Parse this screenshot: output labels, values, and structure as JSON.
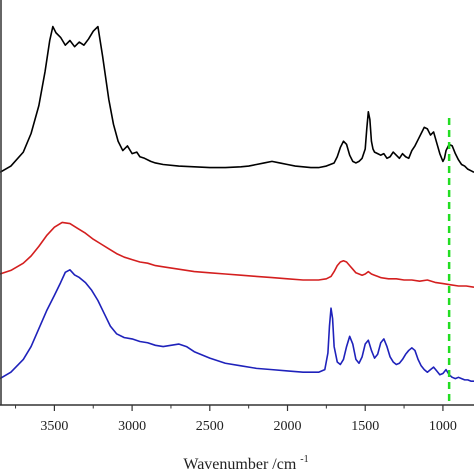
{
  "chart_data": {
    "type": "line",
    "xlabel": "Wavenumber /cm",
    "xlabel_superscript": "-1",
    "ylabel": "",
    "x_reversed": true,
    "xlim": [
      3850,
      800
    ],
    "x_ticks": [
      3500,
      3000,
      2500,
      2000,
      1500,
      1000
    ],
    "x_tick_labels": [
      "3500",
      "3000",
      "2500",
      "2000",
      "1500",
      "1000"
    ],
    "y_ticks_shown": false,
    "grid": false,
    "legend": "none",
    "reference_line": {
      "x": 960,
      "style": "dashed",
      "color": "#22dd22"
    },
    "series": [
      {
        "color": "#000000",
        "x": [
          3850,
          3780,
          3700,
          3650,
          3600,
          3560,
          3530,
          3510,
          3490,
          3460,
          3430,
          3400,
          3370,
          3340,
          3310,
          3280,
          3250,
          3220,
          3190,
          3150,
          3120,
          3090,
          3060,
          3030,
          3000,
          2970,
          2950,
          2920,
          2880,
          2850,
          2800,
          2700,
          2600,
          2500,
          2400,
          2300,
          2250,
          2200,
          2150,
          2100,
          2050,
          2000,
          1950,
          1900,
          1850,
          1800,
          1750,
          1700,
          1680,
          1660,
          1640,
          1620,
          1600,
          1580,
          1560,
          1540,
          1520,
          1500,
          1490,
          1480,
          1470,
          1460,
          1450,
          1440,
          1420,
          1400,
          1380,
          1360,
          1340,
          1320,
          1300,
          1280,
          1260,
          1240,
          1220,
          1200,
          1180,
          1160,
          1140,
          1120,
          1100,
          1080,
          1060,
          1040,
          1020,
          1000,
          990,
          980,
          960,
          940,
          920,
          900,
          880,
          860,
          840,
          820,
          800
        ],
        "y": [
          0.05,
          0.09,
          0.18,
          0.3,
          0.48,
          0.7,
          0.9,
          0.99,
          0.95,
          0.92,
          0.87,
          0.9,
          0.86,
          0.89,
          0.87,
          0.91,
          0.96,
          0.99,
          0.8,
          0.52,
          0.36,
          0.25,
          0.19,
          0.22,
          0.17,
          0.18,
          0.15,
          0.14,
          0.12,
          0.11,
          0.1,
          0.09,
          0.085,
          0.08,
          0.08,
          0.085,
          0.09,
          0.1,
          0.11,
          0.12,
          0.11,
          0.1,
          0.09,
          0.085,
          0.08,
          0.08,
          0.09,
          0.11,
          0.15,
          0.21,
          0.25,
          0.23,
          0.16,
          0.12,
          0.11,
          0.12,
          0.14,
          0.2,
          0.33,
          0.44,
          0.39,
          0.25,
          0.2,
          0.18,
          0.17,
          0.16,
          0.17,
          0.14,
          0.15,
          0.18,
          0.16,
          0.14,
          0.17,
          0.15,
          0.14,
          0.19,
          0.22,
          0.26,
          0.3,
          0.34,
          0.33,
          0.29,
          0.31,
          0.24,
          0.17,
          0.12,
          0.14,
          0.19,
          0.23,
          0.22,
          0.17,
          0.13,
          0.1,
          0.09,
          0.07,
          0.06,
          0.05
        ]
      },
      {
        "color": "#d41f1f",
        "x": [
          3850,
          3780,
          3700,
          3650,
          3600,
          3550,
          3500,
          3450,
          3400,
          3350,
          3300,
          3250,
          3200,
          3150,
          3100,
          3050,
          3000,
          2950,
          2900,
          2850,
          2800,
          2700,
          2600,
          2500,
          2400,
          2300,
          2200,
          2100,
          2000,
          1900,
          1800,
          1750,
          1720,
          1700,
          1680,
          1660,
          1640,
          1620,
          1600,
          1580,
          1560,
          1540,
          1520,
          1500,
          1480,
          1460,
          1440,
          1420,
          1400,
          1350,
          1300,
          1250,
          1200,
          1150,
          1100,
          1050,
          1000,
          950,
          900,
          850,
          800
        ],
        "y": [
          0.15,
          0.18,
          0.24,
          0.3,
          0.38,
          0.47,
          0.54,
          0.58,
          0.57,
          0.53,
          0.49,
          0.44,
          0.4,
          0.36,
          0.32,
          0.29,
          0.27,
          0.25,
          0.24,
          0.22,
          0.21,
          0.19,
          0.17,
          0.16,
          0.15,
          0.14,
          0.13,
          0.12,
          0.11,
          0.1,
          0.1,
          0.11,
          0.13,
          0.17,
          0.22,
          0.25,
          0.26,
          0.25,
          0.22,
          0.19,
          0.16,
          0.15,
          0.14,
          0.15,
          0.17,
          0.15,
          0.14,
          0.13,
          0.12,
          0.11,
          0.11,
          0.1,
          0.1,
          0.09,
          0.1,
          0.08,
          0.07,
          0.06,
          0.05,
          0.05,
          0.04
        ]
      },
      {
        "color": "#1f22bb",
        "x": [
          3850,
          3780,
          3700,
          3650,
          3600,
          3550,
          3500,
          3460,
          3430,
          3400,
          3370,
          3340,
          3300,
          3260,
          3220,
          3180,
          3140,
          3100,
          3050,
          3000,
          2950,
          2900,
          2850,
          2800,
          2750,
          2700,
          2650,
          2600,
          2500,
          2400,
          2300,
          2200,
          2100,
          2000,
          1900,
          1800,
          1760,
          1740,
          1730,
          1720,
          1710,
          1700,
          1680,
          1660,
          1640,
          1620,
          1600,
          1580,
          1560,
          1540,
          1520,
          1500,
          1480,
          1460,
          1440,
          1420,
          1400,
          1380,
          1360,
          1340,
          1320,
          1300,
          1280,
          1260,
          1240,
          1220,
          1200,
          1180,
          1160,
          1140,
          1120,
          1100,
          1080,
          1060,
          1040,
          1020,
          1000,
          980,
          960,
          940,
          920,
          900,
          880,
          860,
          840,
          820,
          800
        ],
        "y": [
          0.05,
          0.1,
          0.2,
          0.3,
          0.44,
          0.58,
          0.7,
          0.8,
          0.88,
          0.9,
          0.86,
          0.84,
          0.8,
          0.74,
          0.66,
          0.56,
          0.46,
          0.4,
          0.37,
          0.36,
          0.34,
          0.33,
          0.31,
          0.3,
          0.31,
          0.32,
          0.3,
          0.26,
          0.21,
          0.17,
          0.15,
          0.13,
          0.12,
          0.11,
          0.1,
          0.1,
          0.12,
          0.25,
          0.46,
          0.6,
          0.52,
          0.3,
          0.18,
          0.16,
          0.2,
          0.3,
          0.38,
          0.32,
          0.2,
          0.17,
          0.22,
          0.32,
          0.35,
          0.27,
          0.21,
          0.24,
          0.33,
          0.36,
          0.3,
          0.22,
          0.18,
          0.16,
          0.17,
          0.2,
          0.24,
          0.27,
          0.29,
          0.27,
          0.2,
          0.15,
          0.12,
          0.1,
          0.12,
          0.14,
          0.11,
          0.08,
          0.09,
          0.12,
          0.08,
          0.06,
          0.05,
          0.06,
          0.05,
          0.04,
          0.04,
          0.03,
          0.03
        ]
      }
    ]
  }
}
